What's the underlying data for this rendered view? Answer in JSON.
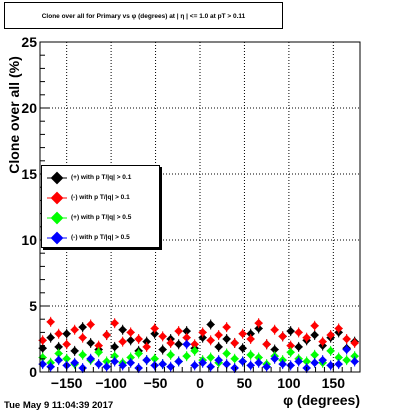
{
  "title": "Clone  over all for Primary vs φ (degrees) at | η | <= 1.0 at pT > 0.11",
  "timestamp": "Tue May  9 11:04:39 2017",
  "chart_data": {
    "type": "scatter",
    "title": "Clone  over all for Primary vs φ (degrees) at | η | <= 1.0 at pT > 0.11",
    "xlabel": "φ (degrees)",
    "ylabel": "Clone  over all (%)",
    "xlim": [
      -180,
      180
    ],
    "ylim": [
      0,
      25
    ],
    "xticks": [
      -150,
      -100,
      -50,
      0,
      50,
      100,
      150
    ],
    "yticks": [
      0,
      5,
      10,
      15,
      20,
      25
    ],
    "grid": true,
    "legend_position": "middle-left",
    "series": [
      {
        "name": "(+) with p T/|q| > 0.1",
        "color": "#000000",
        "x": [
          -177,
          -168,
          -159,
          -150,
          -141,
          -132,
          -123,
          -114,
          -105,
          -96,
          -87,
          -78,
          -69,
          -60,
          -51,
          -42,
          -33,
          -24,
          -15,
          -6,
          3,
          12,
          21,
          30,
          39,
          48,
          57,
          66,
          75,
          84,
          93,
          102,
          111,
          120,
          129,
          138,
          147,
          156,
          165,
          174
        ],
        "y": [
          1.8,
          2.6,
          1.9,
          2.9,
          1.6,
          3.4,
          2.2,
          1.7,
          2.8,
          1.9,
          3.2,
          2.4,
          1.6,
          2.3,
          2.9,
          1.7,
          2.5,
          2.1,
          3.1,
          1.8,
          2.6,
          3.6,
          1.9,
          2.5,
          2.2,
          1.8,
          2.9,
          3.3,
          2.1,
          1.7,
          2.7,
          3.1,
          1.9,
          2.4,
          2.8,
          2.0,
          2.6,
          3.0,
          1.8,
          2.3
        ]
      },
      {
        "name": "(-) with p T/|q| > 0.1",
        "color": "#ff0000",
        "x": [
          -177,
          -168,
          -159,
          -150,
          -141,
          -132,
          -123,
          -114,
          -105,
          -96,
          -87,
          -78,
          -69,
          -60,
          -51,
          -42,
          -33,
          -24,
          -15,
          -6,
          3,
          12,
          21,
          30,
          39,
          48,
          57,
          66,
          75,
          84,
          93,
          102,
          111,
          120,
          129,
          138,
          147,
          156,
          165,
          174
        ],
        "y": [
          2.4,
          3.8,
          2.9,
          2.1,
          3.2,
          2.6,
          3.6,
          2.0,
          2.8,
          3.7,
          2.3,
          3.0,
          2.5,
          1.9,
          3.3,
          2.7,
          2.2,
          3.1,
          2.6,
          2.1,
          3.0,
          2.4,
          2.8,
          3.4,
          2.2,
          2.9,
          2.5,
          3.7,
          2.1,
          3.2,
          2.7,
          2.0,
          3.0,
          2.6,
          3.5,
          2.3,
          2.8,
          3.3,
          2.5,
          2.2
        ]
      },
      {
        "name": "(+) with p T/|q| > 0.5",
        "color": "#00ff00",
        "x": [
          -177,
          -168,
          -159,
          -150,
          -141,
          -132,
          -123,
          -114,
          -105,
          -96,
          -87,
          -78,
          -69,
          -60,
          -51,
          -42,
          -33,
          -24,
          -15,
          -6,
          3,
          12,
          21,
          30,
          39,
          48,
          57,
          66,
          75,
          84,
          93,
          102,
          111,
          120,
          129,
          138,
          147,
          156,
          165,
          174
        ],
        "y": [
          1.1,
          0.7,
          1.4,
          1.0,
          0.6,
          1.3,
          0.9,
          1.5,
          0.8,
          1.2,
          0.7,
          1.1,
          1.4,
          0.9,
          1.0,
          0.6,
          1.3,
          0.8,
          1.2,
          1.6,
          0.9,
          1.1,
          0.7,
          1.4,
          1.0,
          0.8,
          1.3,
          1.1,
          0.6,
          1.2,
          0.9,
          1.5,
          1.0,
          0.8,
          1.3,
          0.7,
          1.6,
          1.1,
          0.9,
          1.2
        ]
      },
      {
        "name": "(-) with p T/|q| > 0.5",
        "color": "#0000ff",
        "x": [
          -177,
          -168,
          -159,
          -150,
          -141,
          -132,
          -123,
          -114,
          -105,
          -96,
          -87,
          -78,
          -69,
          -60,
          -51,
          -42,
          -33,
          -24,
          -15,
          -6,
          3,
          12,
          21,
          30,
          39,
          48,
          57,
          66,
          75,
          84,
          93,
          102,
          111,
          120,
          129,
          138,
          147,
          156,
          165,
          174
        ],
        "y": [
          0.6,
          0.4,
          0.9,
          0.5,
          0.7,
          0.3,
          1.0,
          0.6,
          0.4,
          0.8,
          0.5,
          0.7,
          0.3,
          0.9,
          0.5,
          0.6,
          0.4,
          0.8,
          2.1,
          0.5,
          0.7,
          0.4,
          0.9,
          0.6,
          0.3,
          0.8,
          0.5,
          0.7,
          0.4,
          1.0,
          0.6,
          0.5,
          0.8,
          0.3,
          0.7,
          0.9,
          0.5,
          0.6,
          1.7,
          0.8
        ]
      }
    ]
  }
}
